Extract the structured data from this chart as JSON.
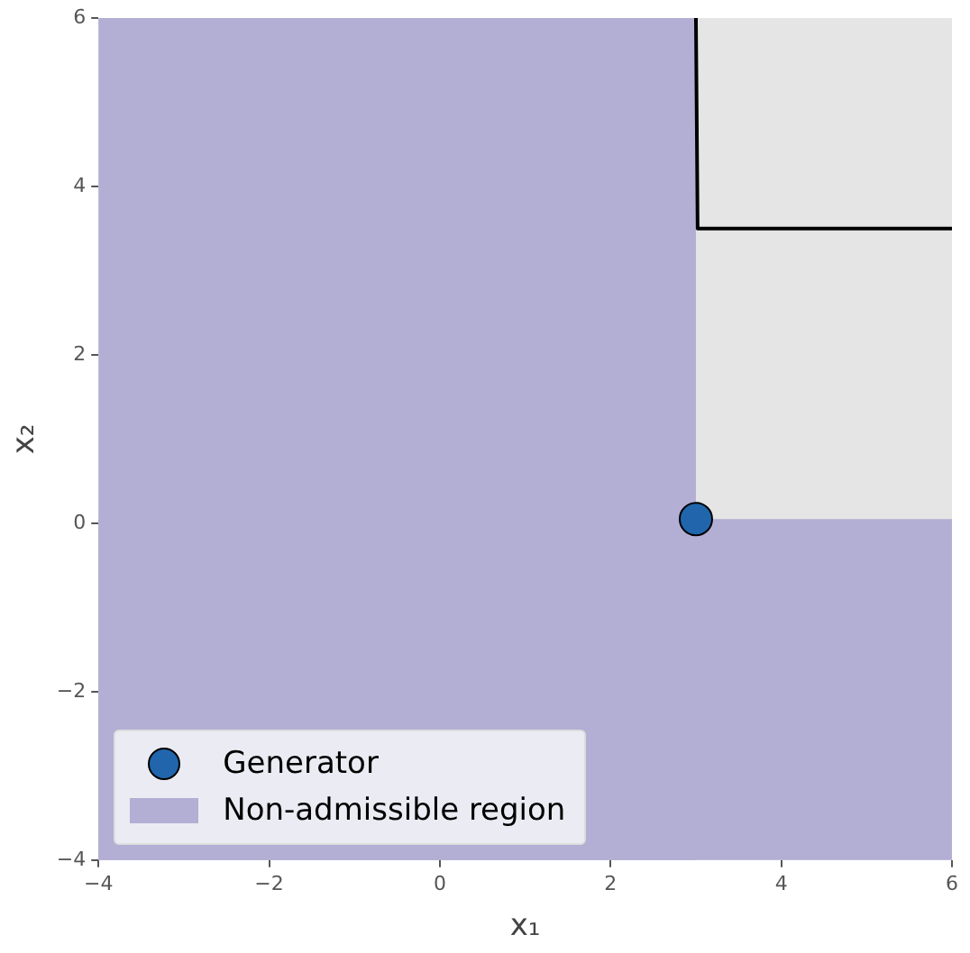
{
  "chart_data": {
    "type": "scatter",
    "xlabel": "x₁",
    "ylabel": "x₂",
    "xlim": [
      -4,
      6
    ],
    "xticks": [
      -4,
      -2,
      0,
      2,
      4,
      6
    ],
    "ylim": [
      -4,
      6
    ],
    "yticks": [
      -4,
      -2,
      0,
      2,
      4,
      6
    ],
    "series": [
      {
        "name": "Generator",
        "color": "#2166ac",
        "x": [
          3
        ],
        "values": [
          0.05
        ],
        "marker": "circle"
      },
      {
        "type": "line",
        "color": "#000000",
        "x": [
          3,
          3.02,
          6
        ],
        "values": [
          6,
          3.5,
          3.5
        ],
        "marker": "none",
        "line_style": "solid"
      }
    ],
    "bands": [
      {
        "axis": "x",
        "from": -4,
        "to": 3,
        "label": "Non-admissible region",
        "color": "#b3aed4"
      },
      {
        "axis": "y",
        "from": -4,
        "to": 0.05,
        "color": "#b3aed4"
      }
    ],
    "grid": false,
    "legend": "bottom left"
  }
}
